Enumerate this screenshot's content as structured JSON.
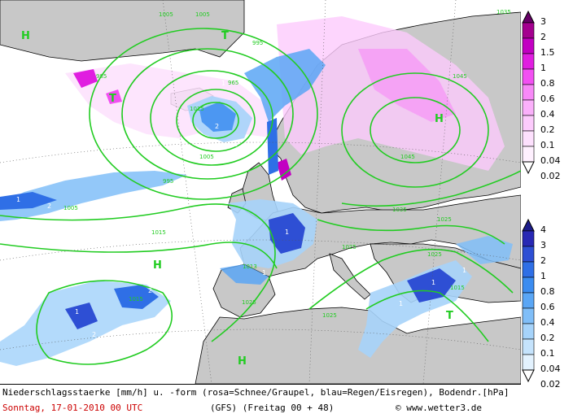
{
  "caption": {
    "line1": "Niederschlagsstaerke [mm/h] u. -form (rosa=Schnee/Graupel, blau=Regen/Eisregen), Bodendr.[hPa]",
    "date": "Sonntag, 17-01-2010  00 UTC",
    "model": "(GFS)  (Freitag 00 + 48)",
    "copyright": "© www.wetter3.de"
  },
  "snow_scale": {
    "labels": [
      "3",
      "2",
      "1.5",
      "1",
      "0.8",
      "0.6",
      "0.4",
      "0.2",
      "0.1",
      "0.04",
      "0.02"
    ],
    "colors": [
      "#660066",
      "#a4008f",
      "#c200c2",
      "#e01ee0",
      "#f250f2",
      "#f789f7",
      "#fab0fa",
      "#fccbfc",
      "#fde0fd",
      "#fef0fe",
      "#ffffff"
    ]
  },
  "rain_scale": {
    "labels": [
      "4",
      "3",
      "2",
      "1",
      "0.8",
      "0.6",
      "0.4",
      "0.2",
      "0.1",
      "0.04",
      "0.02"
    ],
    "colors": [
      "#1c1c8a",
      "#2828b4",
      "#2e4fd4",
      "#2f6fe6",
      "#3b8cf0",
      "#5aa6f5",
      "#80bef8",
      "#a6d3fa",
      "#c5e3fc",
      "#e3f2fe",
      "#ffffff"
    ]
  },
  "highs": [
    "H",
    "T",
    "H",
    "T",
    "H",
    "T",
    "H"
  ],
  "isobars": [
    "1005",
    "1005",
    "995",
    "985",
    "965",
    "1035",
    "1045",
    "1045",
    "1035",
    "1025",
    "1025",
    "1015",
    "1005",
    "995",
    "1015",
    "1025",
    "1025",
    "1015",
    "1005",
    "1013",
    "1025",
    "1015"
  ],
  "precip_values": [
    "1",
    "2",
    "1",
    "1",
    "2",
    "1",
    "1",
    "1",
    "2",
    "2",
    "1",
    "1",
    "1"
  ]
}
